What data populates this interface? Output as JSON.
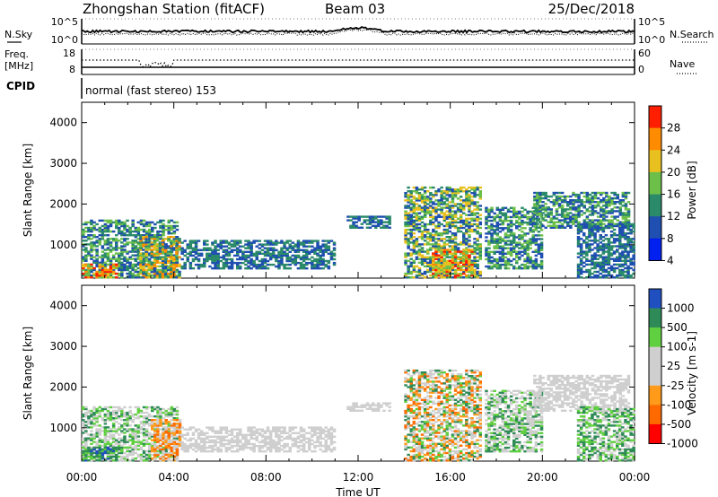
{
  "header": {
    "title": "Zhongshan Station (fitACF)",
    "beam": "Beam 03",
    "date": "25/Dec/2018"
  },
  "top_panel": {
    "left_label": "N.Sky",
    "left_ticks": [
      "10^5",
      "10^0"
    ],
    "right_label": "N.Search",
    "right_ticks": [
      "10^5",
      "10^0"
    ]
  },
  "freq_panel": {
    "left_label_line1": "Freq.",
    "left_label_line2": "[MHz]",
    "left_ticks": [
      "18",
      "8"
    ],
    "right_label": "Nave",
    "right_ticks": [
      "60",
      "0"
    ]
  },
  "cpid": {
    "label": "CPID",
    "text": "normal (fast stereo) 153"
  },
  "chart_data": [
    {
      "type": "heatmap",
      "name": "power",
      "ylabel": "Slant Range [km]",
      "yticks": [
        "4000",
        "3000",
        "2000",
        "1000"
      ],
      "ylim": [
        180,
        4500
      ],
      "xlim": [
        0,
        24
      ],
      "colorbar_label": "Power [dB]",
      "colorbar_ticks": [
        "28",
        "24",
        "20",
        "16",
        "12",
        "8",
        "4"
      ],
      "colors": [
        "#0020f0",
        "#1f4fb0",
        "#2a8a6a",
        "#6cc04a",
        "#e8c020",
        "#ff8c00",
        "#ff1e00"
      ],
      "regions": [
        {
          "t": [
            0.0,
            4.2
          ],
          "r": [
            180,
            1600
          ],
          "level": [
            1,
            3
          ]
        },
        {
          "t": [
            0.0,
            1.5
          ],
          "r": [
            180,
            500
          ],
          "level": [
            3,
            6
          ]
        },
        {
          "t": [
            2.5,
            4.3
          ],
          "r": [
            180,
            1200
          ],
          "level": [
            1,
            5
          ]
        },
        {
          "t": [
            4.3,
            11.0
          ],
          "r": [
            400,
            1100
          ],
          "level": [
            1,
            2
          ]
        },
        {
          "t": [
            11.5,
            13.3
          ],
          "r": [
            1400,
            1700
          ],
          "level": [
            1,
            2
          ]
        },
        {
          "t": [
            14.0,
            17.3
          ],
          "r": [
            180,
            2400
          ],
          "level": [
            1,
            4
          ]
        },
        {
          "t": [
            15.2,
            17.0
          ],
          "r": [
            180,
            900
          ],
          "level": [
            3,
            6
          ]
        },
        {
          "t": [
            17.5,
            20.0
          ],
          "r": [
            400,
            1900
          ],
          "level": [
            1,
            3
          ]
        },
        {
          "t": [
            19.6,
            23.7
          ],
          "r": [
            1400,
            2300
          ],
          "level": [
            1,
            3
          ]
        },
        {
          "t": [
            21.5,
            24.0
          ],
          "r": [
            180,
            1500
          ],
          "level": [
            1,
            2
          ]
        }
      ]
    },
    {
      "type": "heatmap",
      "name": "velocity",
      "ylabel": "Slant Range [km]",
      "yticks": [
        "4000",
        "3000",
        "2000",
        "1000"
      ],
      "ylim": [
        180,
        4500
      ],
      "xlim": [
        0,
        24
      ],
      "xlabel": "Time UT",
      "xticks": [
        "00:00",
        "04:00",
        "08:00",
        "12:00",
        "16:00",
        "20:00",
        "00:00"
      ],
      "colorbar_label": "Velocity [m s-1]",
      "colorbar_ticks": [
        "1000",
        "500",
        "100",
        "25",
        "-25",
        "-100",
        "-500",
        "-1000"
      ],
      "colors": [
        "#ff0000",
        "#ff6a00",
        "#ff9a1a",
        "#cfcfcf",
        "#cfcfcf",
        "#60d040",
        "#2e8b57",
        "#2050c0"
      ],
      "regions": [
        {
          "t": [
            0.0,
            4.2
          ],
          "r": [
            180,
            1500
          ],
          "level": [
            3,
            6
          ]
        },
        {
          "t": [
            0.0,
            1.5
          ],
          "r": [
            180,
            500
          ],
          "level": [
            5,
            7
          ]
        },
        {
          "t": [
            3.0,
            4.3
          ],
          "r": [
            180,
            1200
          ],
          "level": [
            1,
            3
          ]
        },
        {
          "t": [
            4.3,
            11.0
          ],
          "r": [
            400,
            1000
          ],
          "level": [
            3,
            4
          ]
        },
        {
          "t": [
            11.5,
            13.3
          ],
          "r": [
            1400,
            1600
          ],
          "level": [
            3,
            4
          ]
        },
        {
          "t": [
            14.0,
            17.3
          ],
          "r": [
            180,
            2400
          ],
          "level": [
            1,
            6
          ]
        },
        {
          "t": [
            17.5,
            20.0
          ],
          "r": [
            400,
            1900
          ],
          "level": [
            3,
            6
          ]
        },
        {
          "t": [
            19.6,
            23.7
          ],
          "r": [
            1400,
            2300
          ],
          "level": [
            3,
            4
          ]
        },
        {
          "t": [
            21.5,
            24.0
          ],
          "r": [
            180,
            1500
          ],
          "level": [
            4,
            6
          ]
        }
      ]
    }
  ]
}
